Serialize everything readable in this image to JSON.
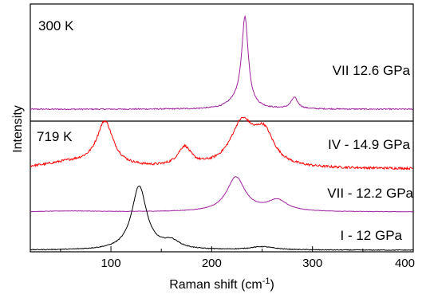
{
  "chart_data": {
    "type": "line",
    "xlabel": "Raman shift (cm",
    "xlabel_superscript": "-1",
    "xlabel_suffix": ")",
    "ylabel": "Intensity",
    "xlim": [
      20,
      400
    ],
    "x_ticks": [
      "100",
      "200",
      "300",
      "400"
    ],
    "x_tick_values": [
      100,
      200,
      300,
      400
    ],
    "grid": false,
    "panels": [
      {
        "label": "300 K",
        "series": [
          {
            "name": "VII 12.6 GPa",
            "color": "#a020a0",
            "baseline": 0.05,
            "noise": 0.006,
            "peaks": [
              {
                "center": 233,
                "height": 0.95,
                "width": 4
              },
              {
                "center": 224,
                "height": 0.06,
                "width": 10
              },
              {
                "center": 282,
                "height": 0.12,
                "width": 4
              }
            ]
          }
        ]
      },
      {
        "label": "719 K",
        "series": [
          {
            "name": "IV - 14.9 GPa",
            "color": "#ff0000",
            "baseline": 0.0,
            "noise": 0.02,
            "peaks": [
              {
                "center": 94,
                "height": 0.78,
                "width": 10
              },
              {
                "center": 60,
                "height": 0.1,
                "width": 30
              },
              {
                "center": 173,
                "height": 0.33,
                "width": 8
              },
              {
                "center": 230,
                "height": 0.75,
                "width": 14
              },
              {
                "center": 252,
                "height": 0.55,
                "width": 12
              }
            ]
          },
          {
            "name": "VII - 12.2 GPa",
            "color": "#a020a0",
            "baseline": 0.0,
            "noise": 0.008,
            "peaks": [
              {
                "center": 224,
                "height": 1.2,
                "width": 11
              },
              {
                "center": 265,
                "height": 0.38,
                "width": 12
              },
              {
                "center": 60,
                "height": 0.03,
                "width": 30
              }
            ]
          },
          {
            "name": "I - 12 GPa",
            "color": "#000000",
            "baseline": 0.0,
            "noise": 0.006,
            "peaks": [
              {
                "center": 128,
                "height": 1.0,
                "width": 9
              },
              {
                "center": 160,
                "height": 0.12,
                "width": 10
              },
              {
                "center": 250,
                "height": 0.05,
                "width": 15
              }
            ]
          }
        ]
      }
    ]
  }
}
